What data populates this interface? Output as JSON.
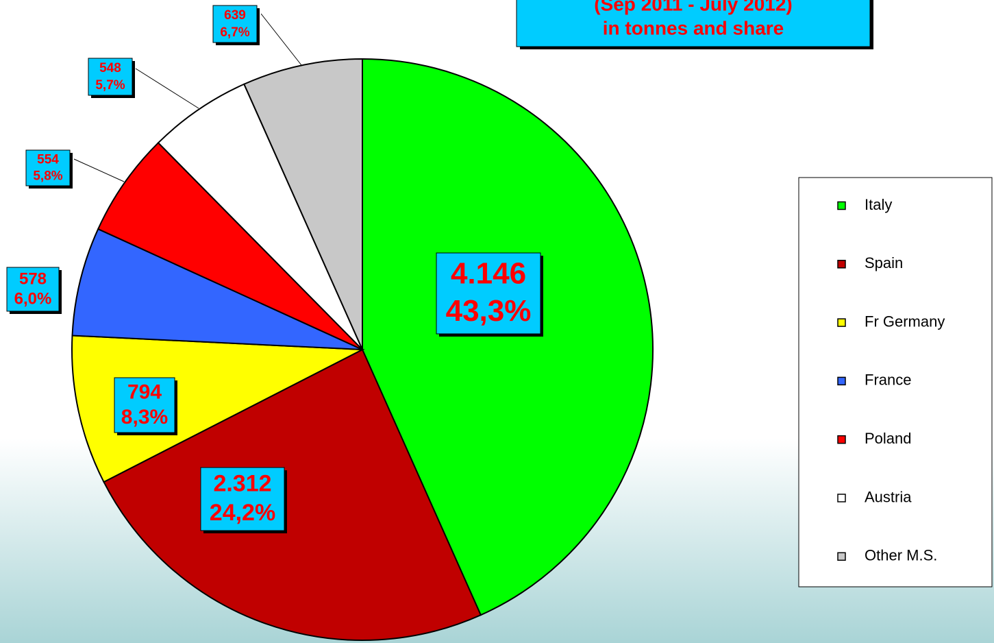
{
  "chart_data": {
    "type": "pie",
    "title": [
      "(Sep 2011 - July 2012)",
      "in tonnes and share"
    ],
    "categories": [
      "Italy",
      "Spain",
      "Fr Germany",
      "France",
      "Poland",
      "Austria",
      "Other M.S."
    ],
    "values": [
      4146,
      2312,
      794,
      578,
      554,
      548,
      639
    ],
    "value_labels": [
      "4.146",
      "2.312",
      "794",
      "578",
      "554",
      "548",
      "639"
    ],
    "shares": [
      43.3,
      24.2,
      8.3,
      6.0,
      5.8,
      5.7,
      6.7
    ],
    "share_labels": [
      "43,3%",
      "24,2%",
      "8,3%",
      "6,0%",
      "5,8%",
      "5,7%",
      "6,7%"
    ],
    "colors": [
      "#00ff00",
      "#c00000",
      "#ffff00",
      "#3366ff",
      "#ff0000",
      "#ffffff",
      "#c8c8c8"
    ],
    "legend": "right"
  }
}
